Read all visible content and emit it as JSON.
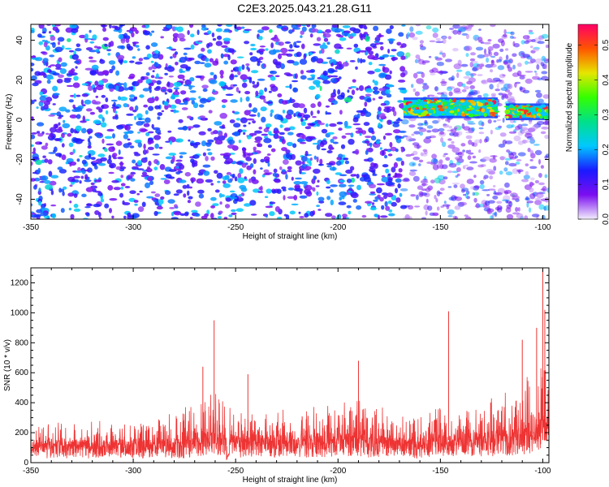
{
  "figure": {
    "title": "C2E3.2025.043.21.28.G11"
  },
  "chart_data": [
    {
      "type": "heatmap",
      "xlabel": "Height of straight line (km)",
      "ylabel": "Frequency (Hz)",
      "xlim": [
        -350,
        -97
      ],
      "ylim": [
        -50,
        48
      ],
      "x_ticks": [
        -350,
        -300,
        -250,
        -200,
        -150,
        -100
      ],
      "y_ticks": [
        -40,
        -20,
        0,
        20,
        40
      ],
      "colorbar": {
        "label": "Normalized spectral amplitude",
        "range": [
          0.0,
          0.56
        ],
        "ticks": [
          0.0,
          0.1,
          0.2,
          0.3,
          0.4,
          0.5
        ],
        "colors": [
          "#f2eefc",
          "#7b0ef0",
          "#1a1aff",
          "#00c8ff",
          "#00e08a",
          "#33ff00",
          "#e6e600",
          "#ff5500",
          "#ff0066"
        ]
      },
      "features": [
        {
          "label": "",
          "x_range": [
            -168,
            -122
          ],
          "freq_center": 6,
          "freq_halfwidth": 4,
          "peak_amplitude": 0.55
        },
        {
          "label": "",
          "x_range": [
            -118,
            -97
          ],
          "freq_center": 4,
          "freq_halfwidth": 3,
          "peak_amplitude": 0.55
        }
      ]
    },
    {
      "type": "line",
      "xlabel": "Height of straight line (km)",
      "ylabel": "SNR (10 * v/v)",
      "xlim": [
        -350,
        -97
      ],
      "ylim": [
        0,
        1300
      ],
      "x_ticks": [
        -350,
        -300,
        -250,
        -200,
        -150,
        -100
      ],
      "y_ticks": [
        0,
        200,
        400,
        600,
        800,
        1000,
        1200
      ],
      "series": [
        {
          "color": "#ee3333",
          "envelope": {
            "x": [
              -350,
              -330,
              -310,
              -290,
              -275,
              -262,
              -255,
              -250,
              -240,
              -225,
              -210,
              -200,
              -190,
              -180,
              -170,
              -160,
              -150,
              -140,
              -130,
              -120,
              -110,
              -105,
              -100,
              -97
            ],
            "base": [
              140,
              140,
              135,
              140,
              150,
              190,
              200,
              160,
              170,
              165,
              170,
              180,
              175,
              165,
              150,
              150,
              175,
              180,
              190,
              200,
              240,
              260,
              280,
              300
            ],
            "upper": [
              320,
              300,
              300,
              320,
              420,
              550,
              500,
              400,
              430,
              400,
              430,
              520,
              480,
              430,
              350,
              380,
              450,
              420,
              430,
              520,
              650,
              700,
              850,
              800
            ]
          },
          "peaks": [
            {
              "x": -260.5,
              "y": 950
            },
            {
              "x": -266,
              "y": 640
            },
            {
              "x": -244,
              "y": 590
            },
            {
              "x": -190,
              "y": 680
            },
            {
              "x": -146,
              "y": 1010
            },
            {
              "x": -110,
              "y": 820
            },
            {
              "x": -103,
              "y": 900
            },
            {
              "x": -100,
              "y": 1290
            },
            {
              "x": -99,
              "y": 1020
            }
          ]
        }
      ]
    }
  ]
}
